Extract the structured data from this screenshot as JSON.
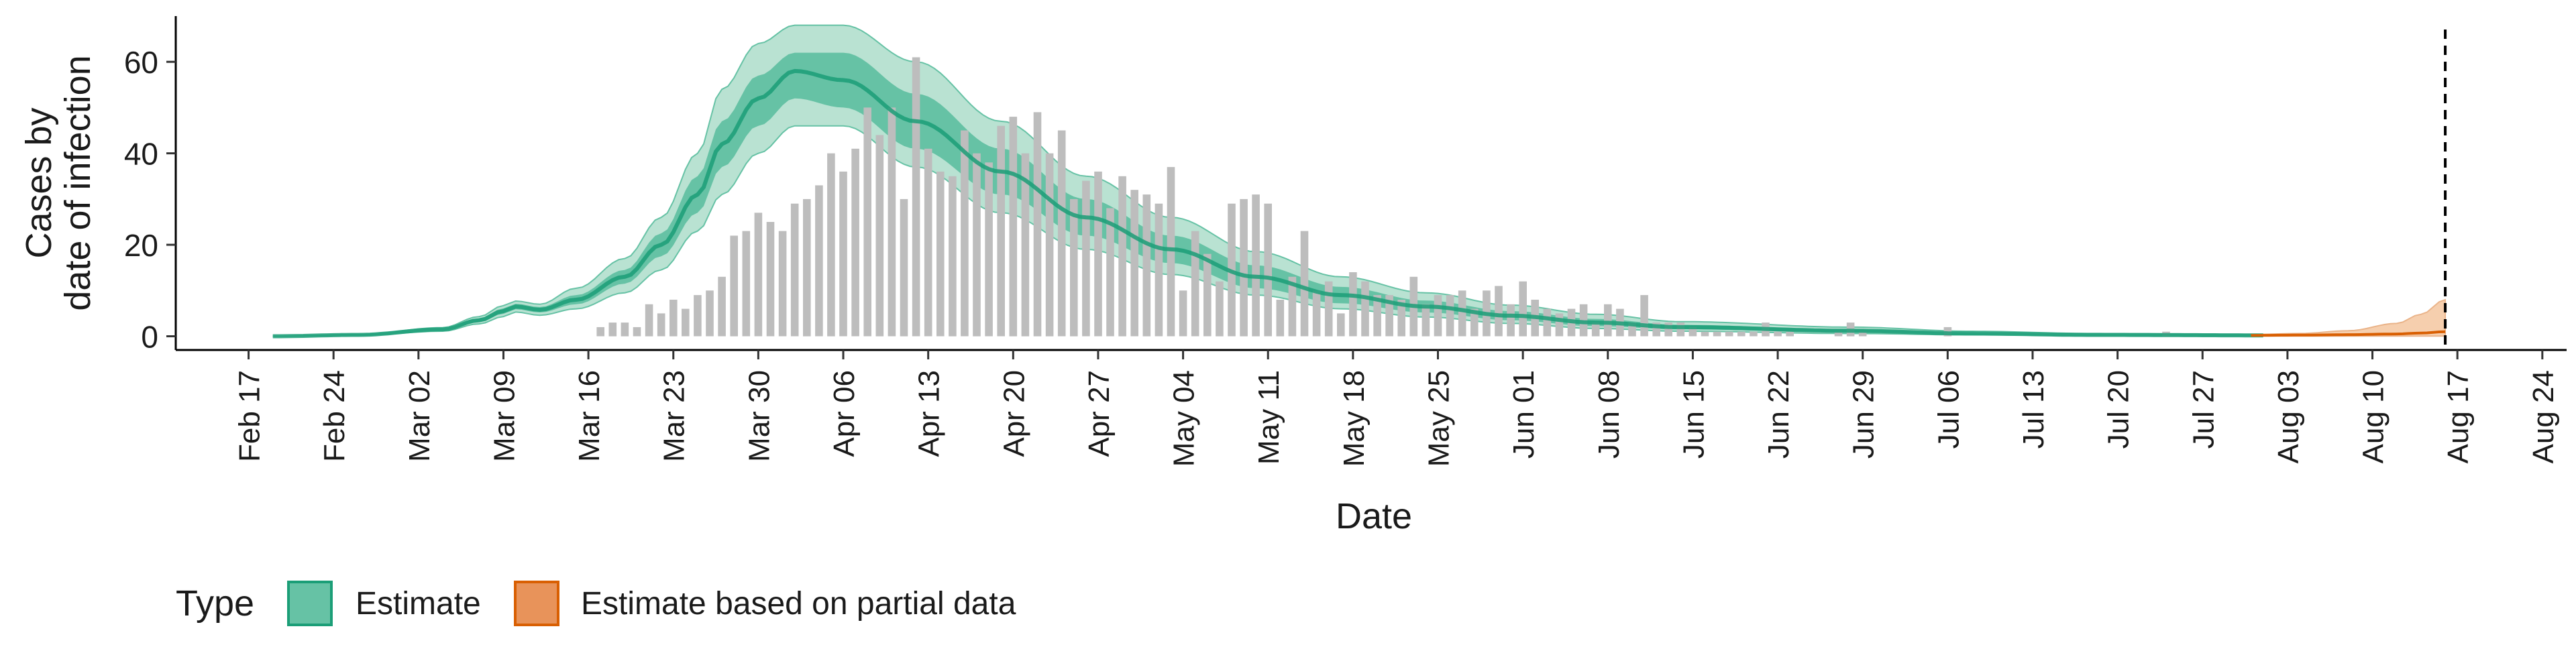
{
  "chart_data": {
    "type": "area",
    "title": "",
    "xlabel": "Date",
    "ylabel_lines": [
      "Cases by",
      "date of infection"
    ],
    "ylim": [
      0,
      70
    ],
    "y_ticks": [
      0,
      20,
      40,
      60
    ],
    "x_range_dates": [
      "2020-02-11",
      "2020-08-26"
    ],
    "x_tick_dates": [
      "2020-02-17",
      "2020-02-24",
      "2020-03-02",
      "2020-03-09",
      "2020-03-16",
      "2020-03-23",
      "2020-03-30",
      "2020-04-06",
      "2020-04-13",
      "2020-04-20",
      "2020-04-27",
      "2020-05-04",
      "2020-05-11",
      "2020-05-18",
      "2020-05-25",
      "2020-06-01",
      "2020-06-08",
      "2020-06-15",
      "2020-06-22",
      "2020-06-29",
      "2020-07-06",
      "2020-07-13",
      "2020-07-20",
      "2020-07-27",
      "2020-08-03",
      "2020-08-10",
      "2020-08-17",
      "2020-08-24"
    ],
    "x_tick_labels": [
      "Feb 17",
      "Feb 24",
      "Mar 02",
      "Mar 09",
      "Mar 16",
      "Mar 23",
      "Mar 30",
      "Apr 06",
      "Apr 13",
      "Apr 20",
      "Apr 27",
      "May 04",
      "May 11",
      "May 18",
      "May 25",
      "Jun 01",
      "Jun 08",
      "Jun 15",
      "Jun 22",
      "Jun 29",
      "Jul 06",
      "Jul 13",
      "Jul 20",
      "Jul 27",
      "Aug 03",
      "Aug 10",
      "Aug 17",
      "Aug 24"
    ],
    "reference_line_date": "2020-08-16",
    "legend": {
      "title": "Type",
      "placement": "bottom-left",
      "items": [
        {
          "label": "Estimate",
          "fill": "#66c2a5",
          "stroke": "#1b9e77"
        },
        {
          "label": "Estimate based on partial data",
          "fill": "#e8935a",
          "stroke": "#d95f02"
        }
      ]
    },
    "colors": {
      "estimate_outer": "#b9e2d2",
      "estimate_mid": "#66c2a5",
      "estimate_median": "#1b9e77",
      "partial_outer": "#f6cfae",
      "partial_median": "#d95f02",
      "bars": "#bdbdbd"
    },
    "observed_cases": {
      "start_date": "2020-03-08",
      "values": [
        0,
        0,
        0,
        0,
        0,
        0,
        0,
        0,
        0,
        2,
        3,
        3,
        2,
        7,
        5,
        8,
        6,
        9,
        10,
        13,
        22,
        23,
        27,
        25,
        23,
        29,
        30,
        33,
        40,
        36,
        41,
        50,
        44,
        50,
        30,
        61,
        41,
        36,
        35,
        45,
        40,
        38,
        46,
        48,
        40,
        49,
        40,
        45,
        30,
        34,
        36,
        28,
        35,
        32,
        31,
        29,
        37,
        10,
        23,
        18,
        12,
        29,
        30,
        31,
        29,
        8,
        13,
        23,
        10,
        12,
        5,
        14,
        12,
        9,
        9,
        8,
        13,
        7,
        9,
        9,
        10,
        6,
        10,
        11,
        7,
        12,
        8,
        6,
        5,
        6,
        7,
        3,
        7,
        6,
        3,
        9,
        3,
        3,
        3,
        2,
        1,
        1,
        1,
        1,
        1,
        3,
        1,
        1,
        0,
        0,
        0,
        1,
        3,
        1,
        0,
        0,
        0,
        0,
        0,
        0,
        2,
        0,
        0,
        0,
        0,
        0,
        0,
        0,
        0,
        0,
        0,
        0,
        0,
        0,
        0,
        0,
        0,
        0,
        1,
        0,
        0,
        0,
        0,
        0,
        0,
        0,
        0,
        0,
        0,
        0,
        0,
        0,
        0,
        0,
        0
      ]
    },
    "estimate": {
      "type": "ribbon",
      "start_date": "2020-02-19",
      "end_date": "2020-08-01",
      "anchors_date_offset": [
        0,
        7,
        14,
        17,
        19,
        20,
        22,
        25,
        29,
        32,
        35,
        37,
        40,
        43,
        47,
        53,
        60,
        67,
        74,
        81,
        88,
        95,
        102,
        109,
        116,
        130,
        140,
        150,
        164
      ],
      "median": [
        0,
        0.3,
        1.5,
        3.5,
        5.5,
        6.5,
        5.8,
        8,
        13,
        20,
        31,
        42,
        52,
        58,
        56,
        47,
        36,
        26,
        19,
        13,
        9,
        6.5,
        4.5,
        3,
        2,
        1.2,
        0.6,
        0.3,
        0.2
      ],
      "lower50": [
        0,
        0.25,
        1.3,
        3.1,
        4.9,
        5.9,
        5.2,
        7,
        11.5,
        17.5,
        27,
        37,
        46,
        52,
        50,
        41,
        31,
        22,
        16,
        10.5,
        7.2,
        5.2,
        3.5,
        2.2,
        1.5,
        0.9,
        0.45,
        0.25,
        0.15
      ],
      "upper50": [
        0,
        0.35,
        1.7,
        3.9,
        6.1,
        7.1,
        6.4,
        9,
        14.5,
        22.5,
        35,
        47,
        57,
        62,
        62,
        53,
        41,
        30,
        22,
        15.5,
        10.8,
        7.8,
        5.5,
        3.8,
        2.5,
        1.5,
        0.8,
        0.4,
        0.25
      ],
      "lower90": [
        0,
        0.2,
        1.1,
        2.7,
        4.3,
        5.3,
        4.6,
        6,
        9.5,
        14.5,
        23,
        31,
        40,
        46,
        46,
        37,
        27,
        19,
        13.5,
        9,
        6,
        4.2,
        2.8,
        1.7,
        1.1,
        0.6,
        0.3,
        0.15,
        0.1
      ],
      "upper90": [
        0,
        0.4,
        1.9,
        4.3,
        6.7,
        7.7,
        7,
        10.5,
        17,
        26,
        40,
        54,
        64,
        68,
        68,
        60,
        47,
        35,
        26,
        18.5,
        13,
        9.5,
        6.8,
        4.8,
        3.2,
        2,
        1.1,
        0.6,
        0.4
      ]
    },
    "estimate_partial": {
      "type": "ribbon",
      "start_date": "2020-07-31",
      "end_date": "2020-08-16",
      "anchors_date_offset": [
        0,
        4,
        8,
        12,
        14,
        16
      ],
      "median": [
        0.2,
        0.25,
        0.35,
        0.5,
        0.7,
        1
      ],
      "lower90": [
        0.05,
        0.05,
        0.05,
        0.05,
        0.05,
        0.05
      ],
      "upper90": [
        0.4,
        0.6,
        1.2,
        2.8,
        4.8,
        8
      ]
    }
  }
}
